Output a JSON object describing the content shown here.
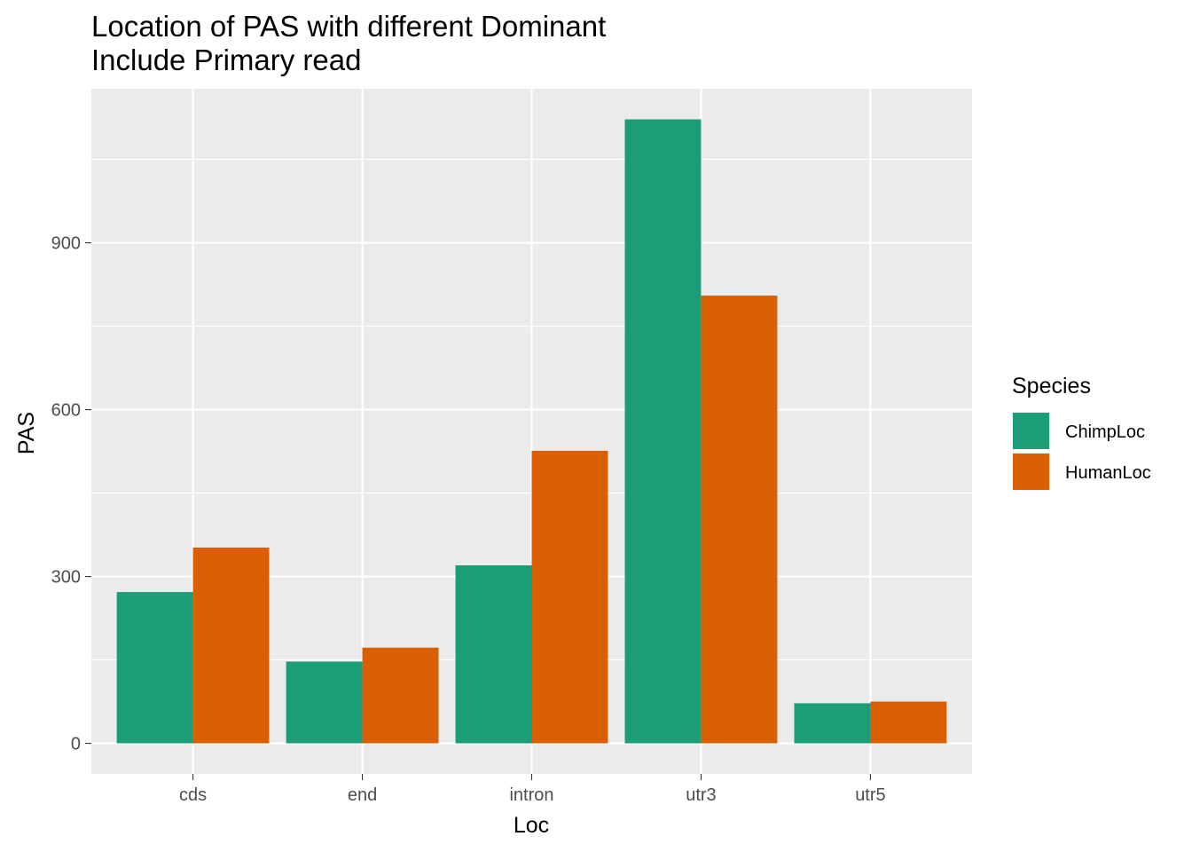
{
  "chart_data": {
    "type": "bar",
    "title": "Location of PAS with different Dominant",
    "subtitle": "Include Primary read",
    "xlabel": "Loc",
    "ylabel": "PAS",
    "categories": [
      "cds",
      "end",
      "intron",
      "utr3",
      "utr5"
    ],
    "series": [
      {
        "name": "ChimpLoc",
        "color": "#1b9e77",
        "values": [
          272,
          147,
          320,
          1122,
          72
        ]
      },
      {
        "name": "HumanLoc",
        "color": "#d95f02",
        "values": [
          352,
          172,
          526,
          805,
          75
        ]
      }
    ],
    "ylim": [
      -55,
      1177
    ],
    "yticks": [
      0,
      300,
      600,
      900
    ],
    "ytick_labels": [
      "0",
      "300",
      "600",
      "900"
    ],
    "grid": true,
    "panel_background": "#ebebeb",
    "grid_color": "#ffffff",
    "legend": {
      "title": "Species",
      "position": "right"
    }
  }
}
